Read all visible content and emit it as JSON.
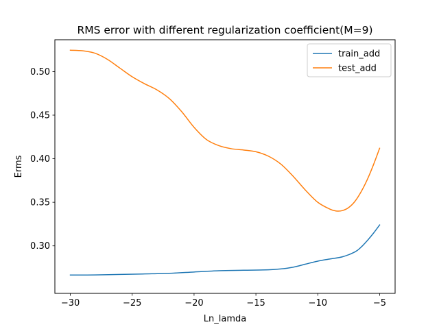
{
  "chart_data": {
    "type": "line",
    "title": "RMS error with different regularization coefficient(M=9)",
    "xlabel": "Ln_lamda",
    "ylabel": "Erms",
    "xlim": [
      -31.25,
      -3.75
    ],
    "ylim": [
      0.2455,
      0.5365
    ],
    "xticks": [
      -30,
      -25,
      -20,
      -15,
      -10,
      -5
    ],
    "xtick_labels": [
      "−30",
      "−25",
      "−20",
      "−15",
      "−10",
      "−5"
    ],
    "yticks": [
      0.3,
      0.35,
      0.4,
      0.45,
      0.5
    ],
    "ytick_labels": [
      "0.30",
      "0.35",
      "0.40",
      "0.45",
      "0.50"
    ],
    "grid": false,
    "legend_position": "top-right",
    "series": [
      {
        "name": "train_add",
        "color": "#1f77b4",
        "x": [
          -30,
          -28,
          -26,
          -24,
          -22,
          -20,
          -18,
          -16,
          -14,
          -13,
          -12,
          -11,
          -10,
          -9,
          -8,
          -7,
          -6.5,
          -6,
          -5.5,
          -5
        ],
        "y": [
          0.2665,
          0.2666,
          0.2672,
          0.2678,
          0.2685,
          0.27,
          0.2715,
          0.272,
          0.2725,
          0.2735,
          0.2755,
          0.279,
          0.2825,
          0.285,
          0.2875,
          0.293,
          0.2985,
          0.306,
          0.3145,
          0.324
        ]
      },
      {
        "name": "test_add",
        "color": "#ff7f0e",
        "x": [
          -30,
          -29,
          -28,
          -27,
          -26,
          -25,
          -24,
          -23,
          -22,
          -21,
          -20,
          -19,
          -18,
          -17,
          -16,
          -15,
          -14,
          -13,
          -12,
          -11,
          -10,
          -9,
          -8.5,
          -8,
          -7.5,
          -7,
          -6.5,
          -6,
          -5.5,
          -5
        ],
        "y": [
          0.5245,
          0.5238,
          0.521,
          0.514,
          0.504,
          0.494,
          0.486,
          0.479,
          0.469,
          0.454,
          0.436,
          0.422,
          0.415,
          0.4115,
          0.41,
          0.408,
          0.403,
          0.394,
          0.38,
          0.364,
          0.35,
          0.342,
          0.34,
          0.3405,
          0.344,
          0.351,
          0.362,
          0.376,
          0.393,
          0.412
        ]
      }
    ]
  }
}
